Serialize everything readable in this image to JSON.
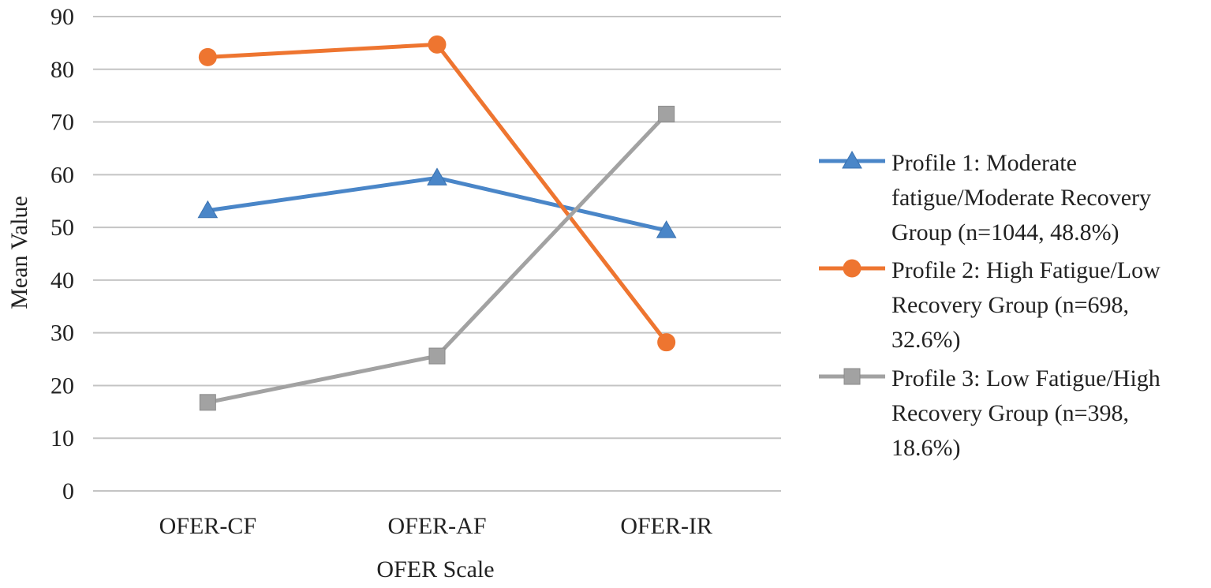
{
  "chart_data": {
    "type": "line",
    "title": "",
    "xlabel": "OFER Scale",
    "ylabel": "Mean Value",
    "categories": [
      "OFER-CF",
      "OFER-AF",
      "OFER-IR"
    ],
    "ylim": [
      0,
      90
    ],
    "yticks": [
      "0",
      "10",
      "20",
      "30",
      "40",
      "50",
      "60",
      "70",
      "80",
      "90"
    ],
    "grid": true,
    "legend_position": "right",
    "series": [
      {
        "name": "Profile 1: Moderate fatigue/Moderate Recovery Group (n=1044, 48.8%)",
        "legend_lines": [
          "Profile 1: Moderate",
          "fatigue/Moderate Recovery",
          "Group (n=1044, 48.8%)"
        ],
        "values": [
          53.2,
          59.4,
          49.4
        ],
        "color": "#4a86c8",
        "marker": "triangle"
      },
      {
        "name": "Profile 2: High Fatigue/Low Recovery Group (n=698, 32.6%)",
        "legend_lines": [
          "Profile 2: High Fatigue/Low",
          "Recovery Group (n=698,",
          "32.6%)"
        ],
        "values": [
          82.3,
          84.7,
          28.2
        ],
        "color": "#ee7530",
        "marker": "circle"
      },
      {
        "name": "Profile 3: Low Fatigue/High Recovery Group (n=398, 18.6%)",
        "legend_lines": [
          "Profile 3: Low Fatigue/High",
          "Recovery Group (n=398,",
          "18.6%)"
        ],
        "values": [
          16.8,
          25.6,
          71.5
        ],
        "color": "#a2a2a2",
        "marker": "square"
      }
    ],
    "colors": {
      "grid": "#c4c4c4",
      "text": "#222222"
    }
  }
}
